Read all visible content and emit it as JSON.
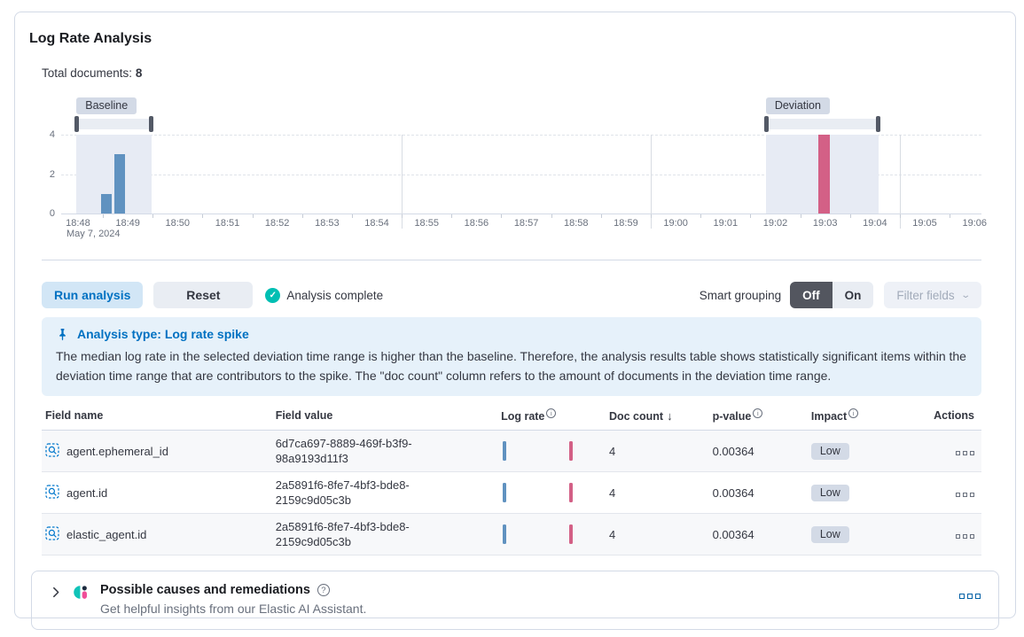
{
  "panel": {
    "title": "Log Rate Analysis",
    "total_documents_label": "Total documents:",
    "total_documents_value": "8"
  },
  "chart_data": {
    "type": "bar",
    "title": "Log rate histogram with baseline and deviation ranges",
    "x_tick_labels": [
      "18:48",
      "18:49",
      "18:50",
      "18:51",
      "18:52",
      "18:53",
      "18:54",
      "18:55",
      "18:56",
      "18:57",
      "18:58",
      "18:59",
      "19:00",
      "19:01",
      "19:02",
      "19:03",
      "19:04",
      "19:05",
      "19:06"
    ],
    "x_date_label": "May 7, 2024",
    "grid_minutes": [
      6.5,
      11.5,
      16.5
    ],
    "y_ticks": [
      "4",
      "2",
      "0"
    ],
    "y_max": 4,
    "baseline": {
      "label": "Baseline",
      "window_minutes": [
        -0.03,
        1.47
      ],
      "bars": [
        {
          "minute": 0.46,
          "count": 1
        },
        {
          "minute": 0.73,
          "count": 3
        }
      ]
    },
    "deviation": {
      "label": "Deviation",
      "window_minutes": [
        13.81,
        16.08
      ],
      "bars": [
        {
          "minute": 14.86,
          "count": 4
        }
      ]
    },
    "colors": {
      "baseline_bar": "#6092C0",
      "deviation_bar": "#D36086",
      "window": "#E7EBF4",
      "brush": "#E9EDF3",
      "brush_handle": "#535966"
    }
  },
  "controls": {
    "run_label": "Run analysis",
    "reset_label": "Reset",
    "status_label": "Analysis complete",
    "smart_grouping_label": "Smart grouping",
    "off_label": "Off",
    "on_label": "On",
    "filter_fields_label": "Filter fields"
  },
  "callout": {
    "title": "Analysis type: Log rate spike",
    "body": "The median log rate in the selected deviation time range is higher than the baseline. Therefore, the analysis results table shows statistically significant items within the deviation time range that are contributors to the spike. The \"doc count\" column refers to the amount of documents in the deviation time range."
  },
  "table": {
    "headers": {
      "field_name": "Field name",
      "field_value": "Field value",
      "log_rate": "Log rate",
      "doc_count": "Doc count",
      "p_value": "p-value",
      "impact": "Impact",
      "actions": "Actions"
    },
    "rows": [
      {
        "field_name": "agent.ephemeral_id",
        "field_value": "6d7ca697-8889-469f-b3f9-98a9193d11f3",
        "doc_count": "4",
        "p_value": "0.00364",
        "impact": "Low"
      },
      {
        "field_name": "agent.id",
        "field_value": "2a5891f6-8fe7-4bf3-bde8-2159c9d05c3b",
        "doc_count": "4",
        "p_value": "0.00364",
        "impact": "Low"
      },
      {
        "field_name": "elastic_agent.id",
        "field_value": "2a5891f6-8fe7-4bf3-bde8-2159c9d05c3b",
        "doc_count": "4",
        "p_value": "0.00364",
        "impact": "Low"
      }
    ]
  },
  "causes_panel": {
    "title": "Possible causes and remediations",
    "subtitle": "Get helpful insights from our Elastic AI Assistant."
  }
}
